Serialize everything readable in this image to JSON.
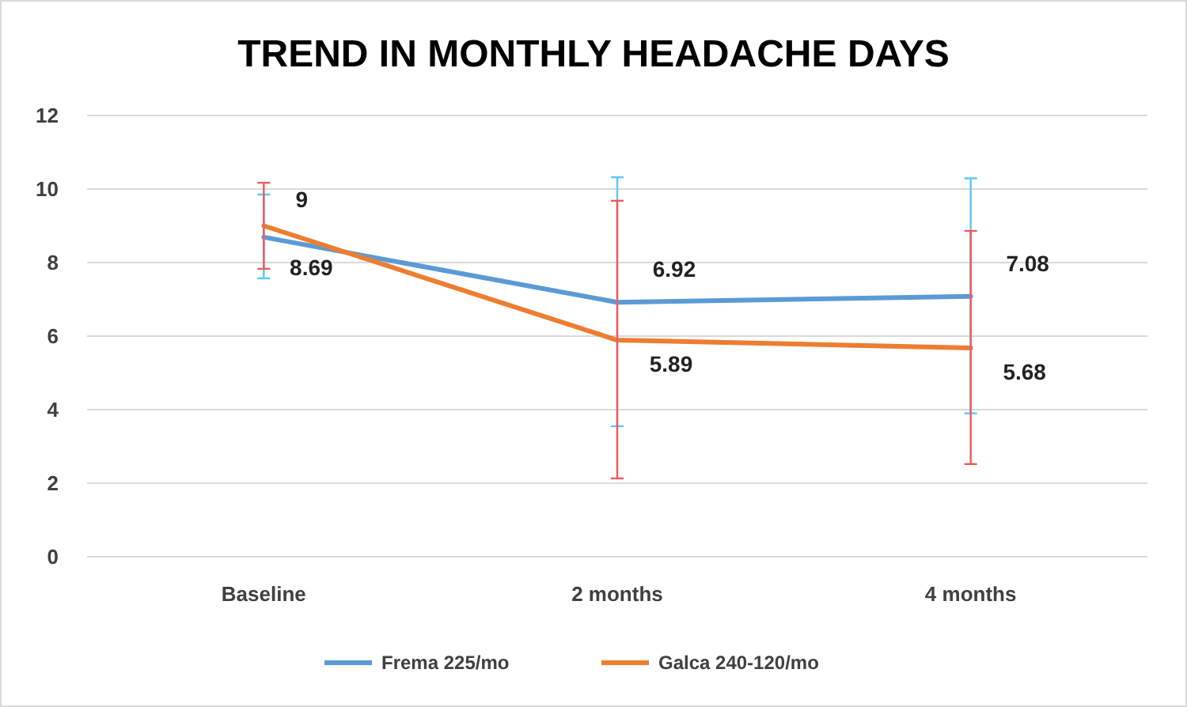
{
  "chart_data": {
    "type": "line",
    "title": "TREND IN MONTHLY HEADACHE DAYS",
    "categories": [
      "Baseline",
      "2 months",
      "4 months"
    ],
    "series": [
      {
        "name": "Frema 225/mo",
        "color": "#5b9bd5",
        "values": [
          8.69,
          6.92,
          7.08
        ],
        "errors": [
          [
            7.57,
            9.85
          ],
          [
            3.55,
            10.32
          ],
          [
            3.9,
            10.29
          ]
        ]
      },
      {
        "name": "Galca 240-120/mo",
        "color": "#ed7d31",
        "values": [
          9,
          5.89,
          5.68
        ],
        "errors": [
          [
            7.83,
            10.17
          ],
          [
            2.13,
            9.68
          ],
          [
            2.52,
            8.86
          ]
        ]
      }
    ],
    "ylim": [
      0,
      12
    ],
    "yticks": [
      0,
      2,
      4,
      6,
      8,
      10,
      12
    ],
    "grid": "y",
    "legend": "bottom",
    "data_labels": true,
    "marker": "none",
    "line_style": "solid"
  }
}
